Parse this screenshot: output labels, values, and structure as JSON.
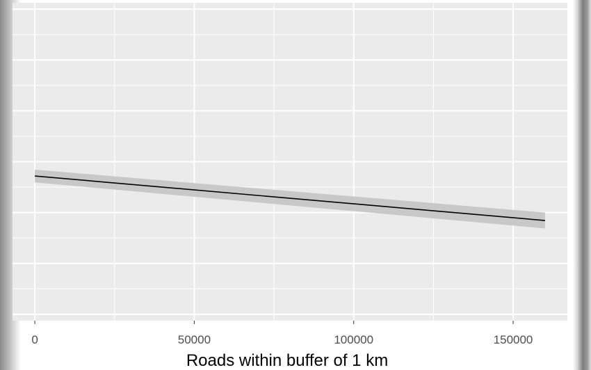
{
  "chart_data": {
    "type": "line",
    "title": "",
    "xlabel": "Roads within buffer of 1 km",
    "ylabel": "",
    "x_ticks": [
      0,
      50000,
      100000,
      150000
    ],
    "x_tick_labels": [
      "0",
      "50000",
      "100000",
      "150000"
    ],
    "xlim": [
      -7000,
      167000
    ],
    "ylim": [
      0,
      1
    ],
    "grid": true,
    "series": [
      {
        "x": [
          0,
          160000
        ],
        "y": [
          0.455,
          0.315
        ],
        "ci_lower": [
          0.435,
          0.29
        ],
        "ci_upper": [
          0.475,
          0.34
        ]
      }
    ],
    "colors": {
      "panel_background": "#ebebeb",
      "gridline": "#ffffff",
      "line": "#000000",
      "ribbon": "#c8c8c8",
      "axis_text": "#4d4d4d",
      "axis_title": "#000000"
    }
  }
}
